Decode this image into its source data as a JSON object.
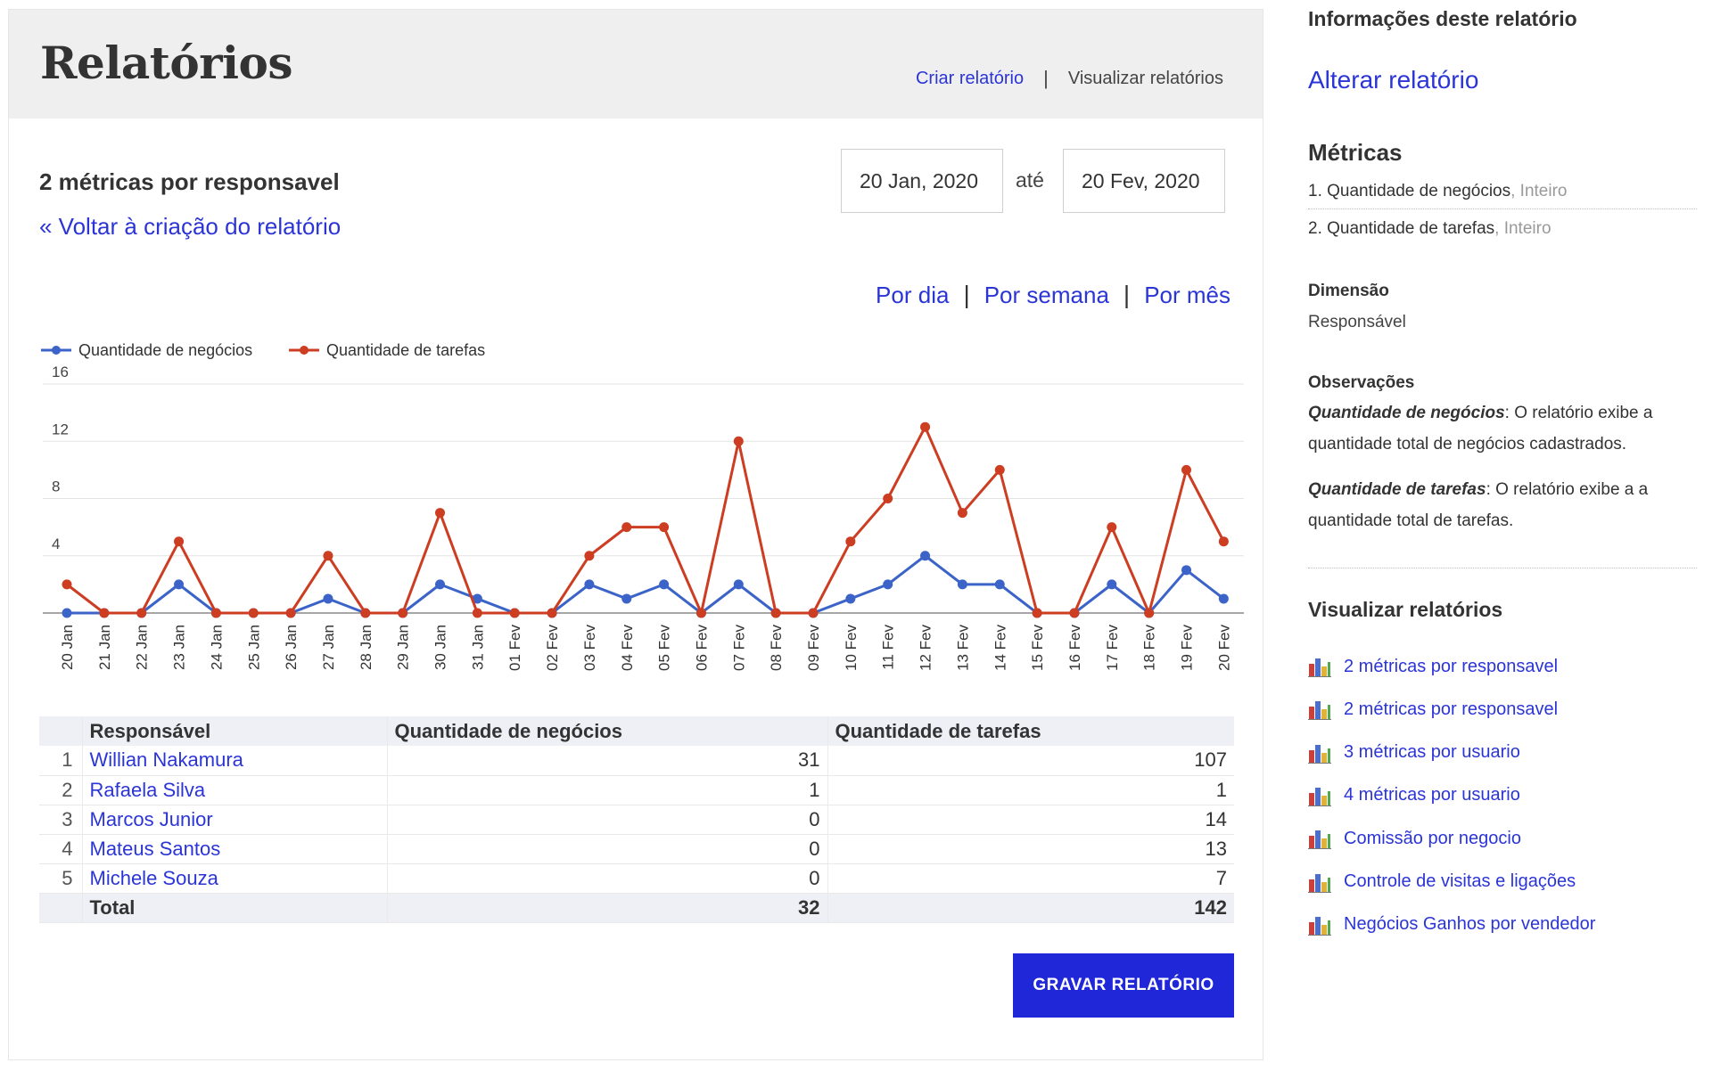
{
  "header": {
    "title": "Relatórios",
    "create_link": "Criar relatório",
    "view_link": "Visualizar relatórios"
  },
  "report": {
    "name": "2 métricas por responsavel",
    "back_link": "« Voltar à criação do relatório",
    "date_start": "20 Jan, 2020",
    "date_separator": "até",
    "date_end": "20 Fev, 2020"
  },
  "period": {
    "by_day": "Por dia",
    "by_week": "Por semana",
    "by_month": "Por mês"
  },
  "chart_data": {
    "type": "line",
    "categories": [
      "20 Jan",
      "21 Jan",
      "22 Jan",
      "23 Jan",
      "24 Jan",
      "25 Jan",
      "26 Jan",
      "27 Jan",
      "28 Jan",
      "29 Jan",
      "30 Jan",
      "31 Jan",
      "01 Fev",
      "02 Fev",
      "03 Fev",
      "04 Fev",
      "05 Fev",
      "06 Fev",
      "07 Fev",
      "08 Fev",
      "09 Fev",
      "10 Fev",
      "11 Fev",
      "12 Fev",
      "13 Fev",
      "14 Fev",
      "15 Fev",
      "16 Fev",
      "17 Fev",
      "18 Fev",
      "19 Fev",
      "20 Fev"
    ],
    "series": [
      {
        "name": "Quantidade de negócios",
        "color": "#3b63c8",
        "values": [
          0,
          0,
          0,
          2,
          0,
          0,
          0,
          1,
          0,
          0,
          2,
          1,
          0,
          0,
          2,
          1,
          2,
          0,
          2,
          0,
          0,
          1,
          2,
          4,
          2,
          2,
          0,
          0,
          2,
          0,
          3,
          1
        ]
      },
      {
        "name": "Quantidade de tarefas",
        "color": "#cc3d22",
        "values": [
          2,
          0,
          0,
          5,
          0,
          0,
          0,
          4,
          0,
          0,
          7,
          0,
          0,
          0,
          4,
          6,
          6,
          0,
          12,
          0,
          0,
          5,
          8,
          13,
          7,
          10,
          0,
          0,
          6,
          0,
          10,
          5
        ]
      }
    ],
    "yticks": [
      4,
      8,
      12,
      16
    ],
    "ylim": [
      0,
      16
    ],
    "legend": "top-left",
    "grid": true
  },
  "table": {
    "headers": [
      "Responsável",
      "Quantidade de negócios",
      "Quantidade de tarefas"
    ],
    "rows": [
      {
        "idx": "1",
        "name": "Willian Nakamura",
        "negocios": "31",
        "tarefas": "107"
      },
      {
        "idx": "2",
        "name": "Rafaela Silva",
        "negocios": "1",
        "tarefas": "1"
      },
      {
        "idx": "3",
        "name": "Marcos Junior",
        "negocios": "0",
        "tarefas": "14"
      },
      {
        "idx": "4",
        "name": "Mateus Santos",
        "negocios": "0",
        "tarefas": "13"
      },
      {
        "idx": "5",
        "name": "Michele Souza",
        "negocios": "0",
        "tarefas": "7"
      }
    ],
    "total": {
      "label": "Total",
      "negocios": "32",
      "tarefas": "142"
    }
  },
  "save_button": "GRAVAR RELATÓRIO",
  "sidebar": {
    "info_title": "Informações deste relatório",
    "alter_link": "Alterar relatório",
    "metrics_title": "Métricas",
    "metrics": [
      {
        "label": "1. Quantidade de negócios",
        "type": ", Inteiro"
      },
      {
        "label": "2. Quantidade de tarefas",
        "type": ", Inteiro"
      }
    ],
    "dimension_title": "Dimensão",
    "dimension_value": "Responsável",
    "obs_title": "Observações",
    "observations": [
      {
        "term": "Quantidade de negócios",
        "text": ": O relatório exibe a quantidade total de negócios cadastrados."
      },
      {
        "term": "Quantidade de tarefas",
        "text": ": O relatório exibe a a quantidade total de tarefas."
      }
    ],
    "view_title": "Visualizar relatórios",
    "reports": [
      {
        "label": "2 métricas por responsavel",
        "icon": "bar-chart-icon"
      },
      {
        "label": "2 métricas por responsavel",
        "icon": "bar-chart-icon"
      },
      {
        "label": "3 métricas por usuario",
        "icon": "bar-chart-icon"
      },
      {
        "label": "4 métricas por usuario",
        "icon": "bar-chart-icon"
      },
      {
        "label": "Comissão por negocio",
        "icon": "bar-chart-icon"
      },
      {
        "label": "Controle de visitas e ligações",
        "icon": "bar-chart-icon"
      },
      {
        "label": "Negócios Ganhos por vendedor",
        "icon": "bar-chart-icon"
      }
    ]
  }
}
